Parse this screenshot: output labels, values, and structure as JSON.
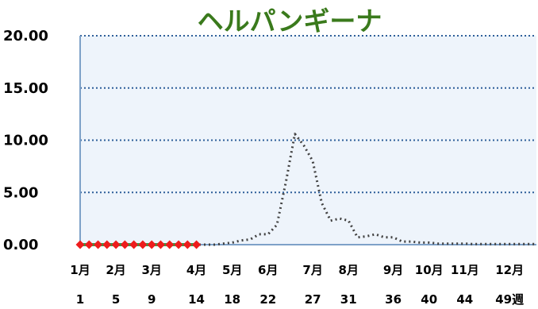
{
  "chart_data": {
    "type": "line",
    "title": "ヘルパンギーナ",
    "xlabel": "",
    "ylabel": "",
    "xlim": [
      1,
      52
    ],
    "ylim": [
      0,
      20
    ],
    "yticks": [
      "0.00",
      "5.00",
      "10.00",
      "15.00",
      "20.00"
    ],
    "xticks_month": [
      {
        "week": 1,
        "label": "1月"
      },
      {
        "week": 5,
        "label": "2月"
      },
      {
        "week": 9,
        "label": "3月"
      },
      {
        "week": 14,
        "label": "4月"
      },
      {
        "week": 18,
        "label": "5月"
      },
      {
        "week": 22,
        "label": "6月"
      },
      {
        "week": 27,
        "label": "7月"
      },
      {
        "week": 31,
        "label": "8月"
      },
      {
        "week": 36,
        "label": "9月"
      },
      {
        "week": 40,
        "label": "10月"
      },
      {
        "week": 44,
        "label": "11月"
      },
      {
        "week": 49,
        "label": "12月"
      }
    ],
    "xticks_week": [
      {
        "week": 1,
        "label": "1"
      },
      {
        "week": 5,
        "label": "5"
      },
      {
        "week": 9,
        "label": "9"
      },
      {
        "week": 14,
        "label": "14"
      },
      {
        "week": 18,
        "label": "18"
      },
      {
        "week": 22,
        "label": "22"
      },
      {
        "week": 27,
        "label": "27"
      },
      {
        "week": 31,
        "label": "31"
      },
      {
        "week": 36,
        "label": "36"
      },
      {
        "week": 40,
        "label": "40"
      },
      {
        "week": 44,
        "label": "44"
      },
      {
        "week": 49,
        "label": "49週"
      }
    ],
    "grid": true,
    "series": [
      {
        "style": "dotted",
        "color": "#404040",
        "x": [
          1,
          2,
          3,
          4,
          5,
          6,
          7,
          8,
          9,
          10,
          11,
          12,
          13,
          14,
          15,
          16,
          17,
          18,
          19,
          20,
          21,
          22,
          23,
          24,
          25,
          26,
          27,
          28,
          29,
          30,
          31,
          32,
          33,
          34,
          35,
          36,
          37,
          38,
          39,
          40,
          41,
          42,
          43,
          44,
          45,
          46,
          47,
          48,
          49,
          50,
          51,
          52
        ],
        "values": [
          0,
          0,
          0,
          0,
          0,
          0,
          0,
          0,
          0,
          0,
          0,
          0,
          0,
          0,
          0,
          0,
          0.1,
          0.2,
          0.4,
          0.5,
          1.0,
          1.0,
          1.9,
          6.0,
          10.6,
          9.5,
          8.0,
          4.0,
          2.3,
          2.5,
          2.3,
          0.7,
          0.8,
          1.0,
          0.7,
          0.7,
          0.3,
          0.3,
          0.2,
          0.2,
          0.1,
          0.1,
          0.1,
          0.1,
          0.05,
          0.05,
          0.05,
          0.05,
          0.05,
          0.05,
          0.05,
          0.05
        ]
      },
      {
        "style": "line-with-markers",
        "color": "#2ea34a",
        "marker_color": "#ee1c1c",
        "x": [
          1,
          2,
          3,
          4,
          5,
          6,
          7,
          8,
          9,
          10,
          11,
          12,
          13,
          14
        ],
        "values": [
          0,
          0,
          0,
          0,
          0,
          0,
          0,
          0,
          0,
          0,
          0,
          0,
          0,
          0
        ]
      }
    ],
    "colors": {
      "plot_bg": "#eef4fb",
      "axis": "#7ea1c8",
      "grid": "#2e5f9a"
    }
  }
}
